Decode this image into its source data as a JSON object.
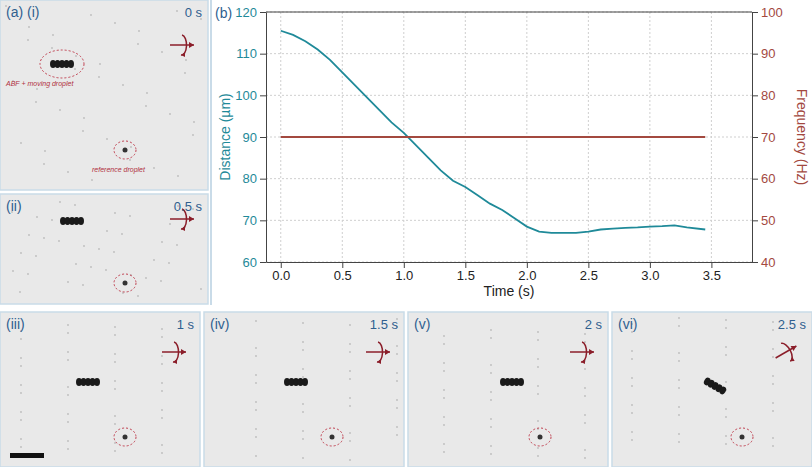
{
  "figure": {
    "panels": [
      {
        "label": "(a) (i)",
        "time": "0 s",
        "annotations": [
          "ABF + moving droplet",
          "reference droplet"
        ]
      },
      {
        "label": "(ii)",
        "time": "0.5 s"
      },
      {
        "label": "(iii)",
        "time": "1 s"
      },
      {
        "label": "(iv)",
        "time": "1.5 s"
      },
      {
        "label": "(v)",
        "time": "2 s"
      },
      {
        "label": "(vi)",
        "time": "2.5 s"
      }
    ]
  },
  "chart_data": {
    "type": "line",
    "panel_label": "(b)",
    "xlabel": "Time (s)",
    "ylabel": "Distance (µm)",
    "y2label": "Frequency (Hz)",
    "x": [
      0,
      0.1,
      0.2,
      0.3,
      0.4,
      0.5,
      0.6,
      0.7,
      0.8,
      0.9,
      1.0,
      1.1,
      1.2,
      1.3,
      1.4,
      1.5,
      1.6,
      1.7,
      1.8,
      1.9,
      2.0,
      2.1,
      2.2,
      2.3,
      2.4,
      2.5,
      2.6,
      2.7,
      2.8,
      2.9,
      3.0,
      3.1,
      3.2,
      3.3,
      3.45
    ],
    "series": [
      {
        "color": "#1f8a99",
        "values": [
          115.5,
          114.5,
          113,
          111,
          108.5,
          105.5,
          102.5,
          99.5,
          96.5,
          93.5,
          91,
          88,
          85,
          82,
          79.5,
          78,
          76,
          74,
          72.5,
          70.5,
          68.5,
          67.3,
          67,
          67,
          67,
          67.3,
          67.8,
          68,
          68.2,
          68.3,
          68.5,
          68.6,
          68.8,
          68.3,
          67.8
        ]
      },
      {
        "color": "#a3493f",
        "axis": "y2",
        "values": [
          70,
          70,
          70,
          70,
          70,
          70,
          70,
          70,
          70,
          70,
          70,
          70,
          70,
          70,
          70,
          70,
          70,
          70,
          70,
          70,
          70,
          70,
          70,
          70,
          70,
          70,
          70,
          70,
          70,
          70,
          70,
          70,
          70,
          70,
          70
        ]
      }
    ],
    "xlim": [
      -0.12,
      3.83
    ],
    "xticks": [
      {
        "value": 0,
        "label": "0.0"
      },
      {
        "value": 0.5,
        "label": "0.5"
      },
      {
        "value": 1,
        "label": "1.0"
      },
      {
        "value": 1.5,
        "label": "1.5"
      },
      {
        "value": 2,
        "label": "2.0"
      },
      {
        "value": 2.5,
        "label": "2.5"
      },
      {
        "value": 3,
        "label": "3.0"
      },
      {
        "value": 3.5,
        "label": "3.5"
      }
    ],
    "ylim": [
      60,
      120
    ],
    "yticks": [
      60,
      70,
      80,
      90,
      100,
      110,
      120
    ],
    "y2lim": [
      40,
      100
    ],
    "y2ticks": [
      40,
      50,
      60,
      70,
      80,
      90,
      100
    ],
    "grid": true
  }
}
